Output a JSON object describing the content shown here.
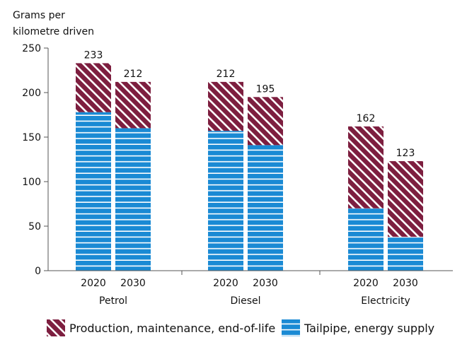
{
  "chart_data": {
    "type": "bar",
    "stacked": true,
    "ylabel": "Grams per kilometre driven",
    "ylabel_lines": [
      "Grams per",
      "kilometre driven"
    ],
    "ylim": [
      0,
      250
    ],
    "yticks": [
      0,
      50,
      100,
      150,
      200,
      250
    ],
    "groups": [
      {
        "name": "Petrol",
        "categories": [
          "2020",
          "2030"
        ]
      },
      {
        "name": "Diesel",
        "categories": [
          "2020",
          "2030"
        ]
      },
      {
        "name": "Electricity",
        "categories": [
          "2020",
          "2030"
        ]
      }
    ],
    "series": [
      {
        "name": "Tailpipe, energy supply",
        "color": "#1a8ad4",
        "values": [
          178,
          160,
          157,
          141,
          70,
          38
        ]
      },
      {
        "name": "Production, maintenance, end-of-life",
        "color": "#7d1e3f",
        "values": [
          55,
          52,
          55,
          54,
          92,
          85
        ]
      }
    ],
    "totals": [
      233,
      212,
      212,
      195,
      162,
      123
    ],
    "legend": [
      "Production, maintenance, end-of-life",
      "Tailpipe, energy supply"
    ],
    "legend_position": "bottom"
  }
}
